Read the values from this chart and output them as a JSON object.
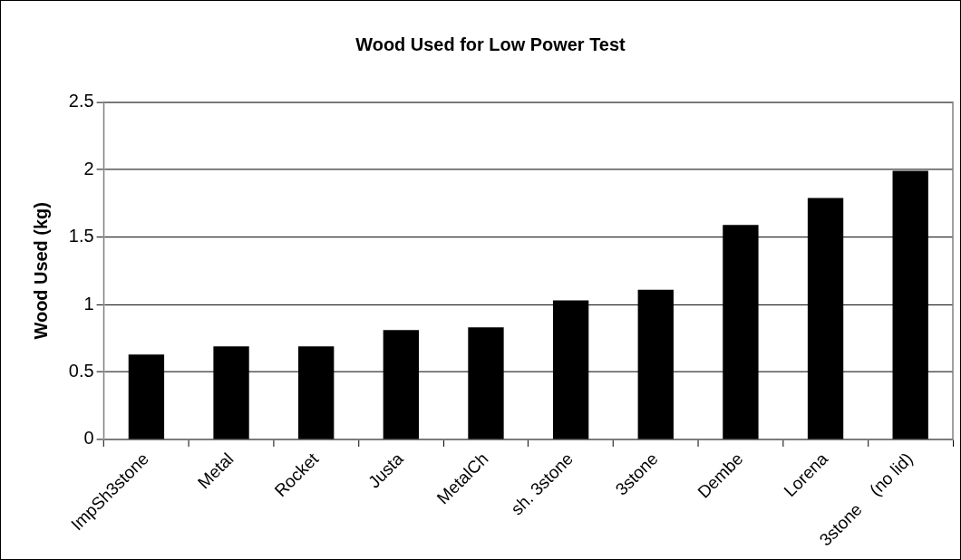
{
  "chart_data": {
    "type": "bar",
    "title": "Wood Used for Low Power Test",
    "ylabel": "Wood Used (kg)",
    "categories": [
      "ImpSh3stone",
      "Metal",
      "Rocket",
      "Justa",
      "MetalCh",
      "sh. 3stone",
      "3stone",
      "Dembe",
      "Lorena",
      "3stone    (no lid)"
    ],
    "values": [
      0.63,
      0.69,
      0.69,
      0.81,
      0.83,
      1.03,
      1.11,
      1.59,
      1.79,
      1.99
    ],
    "color": "#000000",
    "ylim": [
      0,
      2.5
    ],
    "yticks": [
      0,
      0.5,
      1,
      1.5,
      2,
      2.5
    ],
    "grid": "y",
    "legend": false
  }
}
